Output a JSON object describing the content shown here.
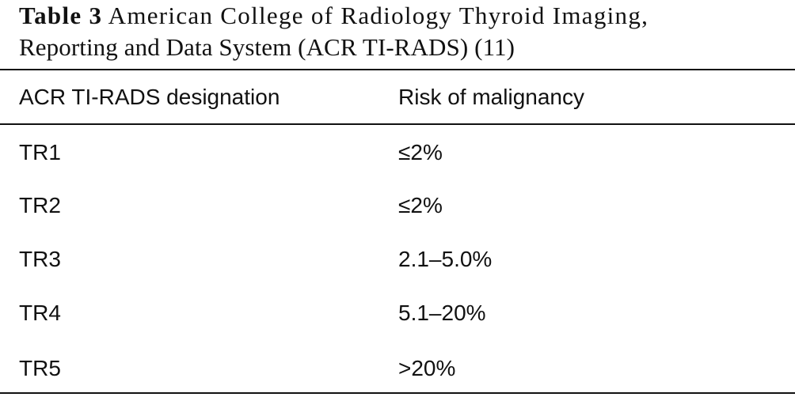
{
  "caption": {
    "label": "Table 3",
    "title_line1": "American College of Radiology Thyroid Imaging,",
    "title_line2": "Reporting and Data System (ACR TI-RADS) (11)"
  },
  "table": {
    "headers": [
      "ACR TI-RADS designation",
      "Risk of malignancy"
    ],
    "rows": [
      [
        "TR1",
        "≤2%"
      ],
      [
        "TR2",
        "≤2%"
      ],
      [
        "TR3",
        "2.1–5.0%"
      ],
      [
        "TR4",
        "5.1–20%"
      ],
      [
        "TR5",
        ">20%"
      ]
    ]
  }
}
